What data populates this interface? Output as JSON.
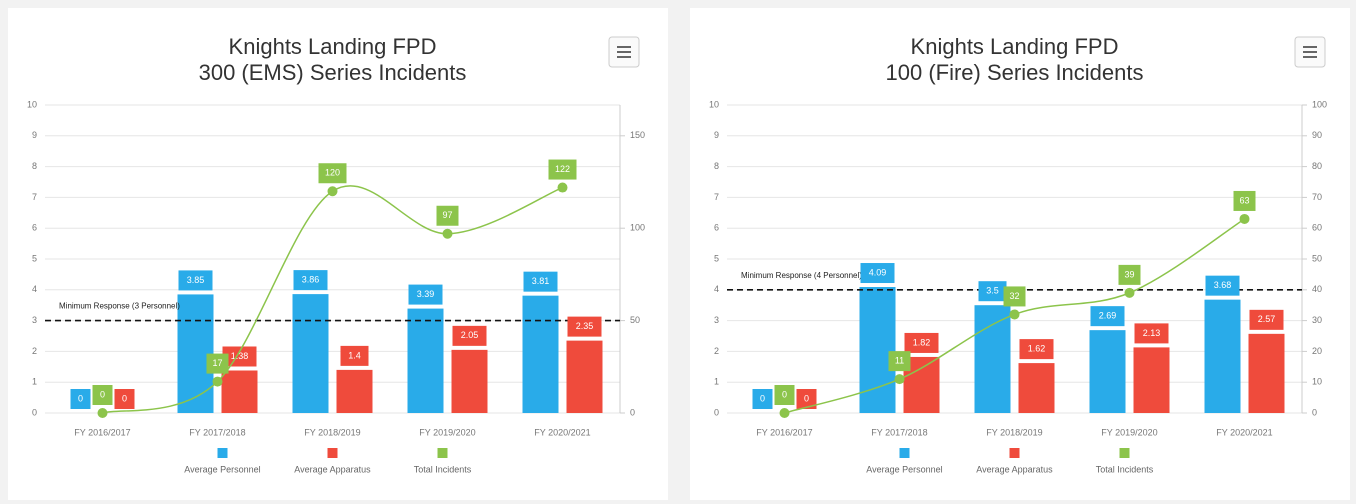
{
  "chart_data": [
    {
      "type": "combo",
      "title": "Knights Landing FPD",
      "subtitle": "300 (EMS) Series Incidents",
      "categories": [
        "FY 2016/2017",
        "FY 2017/2018",
        "FY 2018/2019",
        "FY 2019/2020",
        "FY 2020/2021"
      ],
      "series": [
        {
          "name": "Average Personnel",
          "color": "#29abe9",
          "type": "bar",
          "values": [
            0,
            3.85,
            3.86,
            3.39,
            3.81
          ]
        },
        {
          "name": "Average Apparatus",
          "color": "#ef4b3c",
          "type": "bar",
          "values": [
            0,
            1.38,
            1.4,
            2.05,
            2.35
          ]
        },
        {
          "name": "Total Incidents",
          "color": "#8cc44b",
          "type": "line",
          "axis": "y2",
          "values": [
            0,
            17,
            120,
            97,
            122
          ]
        }
      ],
      "ylim": [
        0,
        10
      ],
      "yticks": [
        0,
        1,
        2,
        3,
        4,
        5,
        6,
        7,
        8,
        9,
        10
      ],
      "y2lim": [
        0,
        166.67
      ],
      "y2ticks": [
        0,
        50,
        100,
        150
      ],
      "annotation": {
        "text": "Minimum Response (3 Personnel)",
        "value": 3
      },
      "grid": true
    },
    {
      "type": "combo",
      "title": "Knights Landing FPD",
      "subtitle": "100 (Fire) Series Incidents",
      "categories": [
        "FY 2016/2017",
        "FY 2017/2018",
        "FY 2018/2019",
        "FY 2019/2020",
        "FY 2020/2021"
      ],
      "series": [
        {
          "name": "Average Personnel",
          "color": "#29abe9",
          "type": "bar",
          "values": [
            0,
            4.09,
            3.5,
            2.69,
            3.68
          ]
        },
        {
          "name": "Average Apparatus",
          "color": "#ef4b3c",
          "type": "bar",
          "values": [
            0,
            1.82,
            1.62,
            2.13,
            2.57
          ]
        },
        {
          "name": "Total Incidents",
          "color": "#8cc44b",
          "type": "line",
          "axis": "y2",
          "values": [
            0,
            11,
            32,
            39,
            63
          ]
        }
      ],
      "ylim": [
        0,
        10
      ],
      "yticks": [
        0,
        1,
        2,
        3,
        4,
        5,
        6,
        7,
        8,
        9,
        10
      ],
      "y2lim": [
        0,
        100
      ],
      "y2ticks": [
        0,
        10,
        20,
        30,
        40,
        50,
        60,
        70,
        80,
        90,
        100
      ],
      "annotation": {
        "text": "Minimum Response (4 Personnel)",
        "value": 4
      },
      "grid": true
    }
  ]
}
